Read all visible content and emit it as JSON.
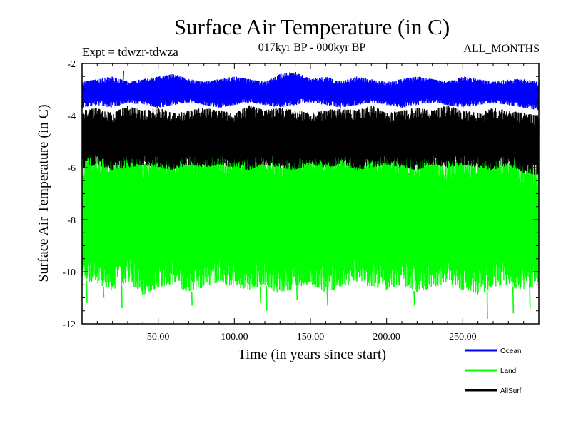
{
  "chart_data": {
    "type": "line",
    "title": "Surface Air Temperature (in C)",
    "subtitle": "017kyr BP - 000kyr BP",
    "experiment_label": "Expt = tdwzr-tdwza",
    "months_label": "ALL_MONTHS",
    "xlabel": "Time (in years since start)",
    "ylabel": "Surface Air Temperature (in C)",
    "xlim": [
      0,
      300
    ],
    "ylim": [
      -12,
      -2
    ],
    "x_ticks": [
      50,
      100,
      150,
      200,
      250
    ],
    "x_tick_labels": [
      "50.00",
      "100.00",
      "150.00",
      "200.00",
      "250.00"
    ],
    "y_ticks": [
      -2,
      -4,
      -6,
      -8,
      -10,
      -12
    ],
    "y_tick_labels": [
      "-2",
      "-4",
      "-6",
      "-8",
      "-10",
      "-12"
    ],
    "grid": false,
    "legend_position": "bottom-right",
    "series": [
      {
        "name": "Land",
        "color": "#00ff00",
        "band_min": [
          -10.3,
          -10.5,
          -10.7,
          -10.4,
          -10.9,
          -10.6,
          -10.5,
          -10.8,
          -10.6,
          -10.4,
          -10.6,
          -10.7,
          -10.5,
          -10.9,
          -10.6,
          -10.5,
          -10.8,
          -10.6,
          -10.4,
          -10.6,
          -10.7,
          -10.5,
          -10.8,
          -10.6,
          -10.5,
          -10.7,
          -10.9,
          -10.6,
          -10.5,
          -10.8,
          -10.4
        ],
        "band_max": [
          -5.7,
          -5.3,
          -5.2,
          -5.0,
          -5.5,
          -5.1,
          -5.4,
          -5.2,
          -5.5,
          -5.3,
          -5.4,
          -5.2,
          -5.6,
          -5.5,
          -5.3,
          -5.4,
          -5.1,
          -5.3,
          -4.9,
          -5.5,
          -5.4,
          -5.2,
          -5.5,
          -5.3,
          -5.6,
          -5.5,
          -5.4,
          -5.3,
          -5.4,
          -5.8,
          -6.0
        ],
        "extremes": [
          {
            "x": 3,
            "y": -11.2
          },
          {
            "x": 14,
            "y": -11.0
          },
          {
            "x": 26,
            "y": -11.4
          },
          {
            "x": 72,
            "y": -11.3
          },
          {
            "x": 117,
            "y": -11.2
          },
          {
            "x": 121,
            "y": -11.5
          },
          {
            "x": 141,
            "y": -11.1
          },
          {
            "x": 161,
            "y": -11.3
          },
          {
            "x": 218,
            "y": -11.3
          },
          {
            "x": 266,
            "y": -11.8
          },
          {
            "x": 283,
            "y": -11.6
          },
          {
            "x": 294,
            "y": -11.4
          },
          {
            "x": 27,
            "y": -4.9
          },
          {
            "x": 102,
            "y": -4.9
          },
          {
            "x": 146,
            "y": -5.0
          },
          {
            "x": 195,
            "y": -4.6
          },
          {
            "x": 207,
            "y": -5.0
          },
          {
            "x": 263,
            "y": -4.9
          }
        ]
      },
      {
        "name": "AllSurf",
        "color": "#000000",
        "band_min": [
          -6.0,
          -5.9,
          -6.1,
          -6.0,
          -5.9,
          -6.0,
          -6.1,
          -5.9,
          -6.0,
          -5.9,
          -6.0,
          -6.1,
          -5.9,
          -6.0,
          -6.1,
          -5.9,
          -6.0,
          -5.9,
          -6.1,
          -6.0,
          -5.9,
          -6.0,
          -6.1,
          -5.9,
          -6.0,
          -5.9,
          -6.0,
          -6.1,
          -5.9,
          -6.2,
          -6.3
        ],
        "band_max": [
          -3.8,
          -3.7,
          -3.9,
          -3.6,
          -3.8,
          -3.7,
          -3.9,
          -3.8,
          -3.7,
          -3.8,
          -3.9,
          -3.6,
          -3.8,
          -3.7,
          -3.8,
          -3.9,
          -3.8,
          -3.7,
          -3.8,
          -3.6,
          -3.9,
          -3.8,
          -3.7,
          -3.8,
          -3.6,
          -3.8,
          -3.9,
          -3.7,
          -3.8,
          -3.9,
          -4.0
        ],
        "extremes": []
      },
      {
        "name": "Ocean",
        "color": "#0000ff",
        "band_min": [
          -3.7,
          -3.6,
          -3.7,
          -3.5,
          -3.6,
          -3.7,
          -3.6,
          -3.5,
          -3.6,
          -3.7,
          -3.6,
          -3.5,
          -3.6,
          -3.7,
          -3.6,
          -3.5,
          -3.6,
          -3.7,
          -3.6,
          -3.5,
          -3.6,
          -3.7,
          -3.6,
          -3.5,
          -3.6,
          -3.7,
          -3.6,
          -3.5,
          -3.6,
          -3.7,
          -3.8
        ],
        "band_max": [
          -2.7,
          -2.6,
          -2.5,
          -2.7,
          -2.6,
          -2.5,
          -2.4,
          -2.6,
          -2.7,
          -2.6,
          -2.5,
          -2.6,
          -2.7,
          -2.4,
          -2.3,
          -2.6,
          -2.5,
          -2.7,
          -2.5,
          -2.6,
          -2.7,
          -2.6,
          -2.5,
          -2.6,
          -2.7,
          -2.5,
          -2.6,
          -2.7,
          -2.6,
          -2.6,
          -2.7
        ],
        "extremes": [
          {
            "x": 27,
            "y": -2.3
          },
          {
            "x": 133,
            "y": -2.4
          }
        ]
      }
    ],
    "legend": [
      {
        "name": "Ocean",
        "color": "#0000ff"
      },
      {
        "name": "Land",
        "color": "#00ff00"
      },
      {
        "name": "AllSurf",
        "color": "#000000"
      }
    ]
  }
}
